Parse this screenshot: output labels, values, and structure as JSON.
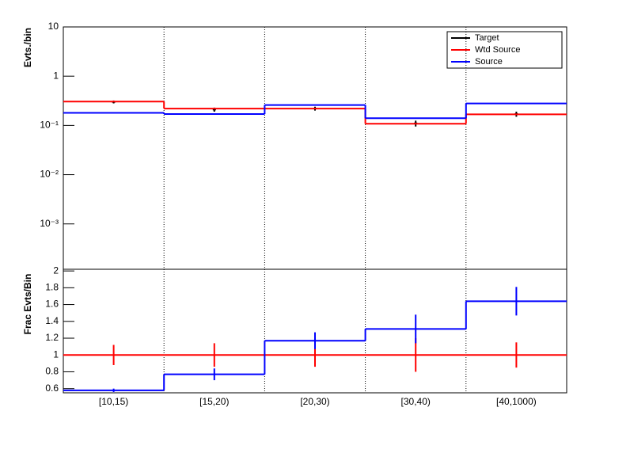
{
  "chart_data": [
    {
      "type": "step",
      "ylabel": "Evts./bin",
      "log_scale": true,
      "legend": "top-right",
      "ylim": [
        0.00012,
        10
      ],
      "yticks": [
        {
          "value": 0.001,
          "label": "10⁻³"
        },
        {
          "value": 0.01,
          "label": "10⁻²"
        },
        {
          "value": 0.1,
          "label": "10⁻¹"
        },
        1,
        10
      ],
      "series": [
        {
          "name": "Target",
          "color": "#000000",
          "style": "points",
          "values": [
            0.3,
            0.21,
            0.22,
            0.11,
            0.17
          ],
          "errors": [
            0.02,
            0.02,
            0.02,
            0.015,
            0.02
          ]
        },
        {
          "name": "Wtd Source",
          "color": "#ff0000",
          "style": "step",
          "values": [
            0.305,
            0.22,
            0.22,
            0.108,
            0.168
          ]
        },
        {
          "name": "Source",
          "color": "#0000ff",
          "style": "step",
          "values": [
            0.18,
            0.17,
            0.26,
            0.14,
            0.28
          ]
        }
      ]
    },
    {
      "type": "step",
      "ylabel": "Frac Evts/Bin",
      "log_scale": false,
      "categories": [
        "[10,15)",
        "[15,20)",
        "[20,30)",
        "[30,40)",
        "[40,1000)"
      ],
      "ylim": [
        0.55,
        2.02
      ],
      "yticks": [
        0.6,
        0.8,
        1,
        1.2,
        1.4,
        1.6,
        1.8,
        2
      ],
      "series": [
        {
          "color": "#ff0000",
          "style": "step",
          "values": [
            1,
            1,
            1,
            1,
            1
          ],
          "errors": [
            0.12,
            0.14,
            0.14,
            0.2,
            0.15
          ]
        },
        {
          "color": "#0000ff",
          "style": "step",
          "values": [
            0.58,
            0.77,
            1.17,
            1.31,
            1.64
          ],
          "errors": [
            0.02,
            0.07,
            0.1,
            0.17,
            0.17
          ]
        }
      ]
    }
  ]
}
